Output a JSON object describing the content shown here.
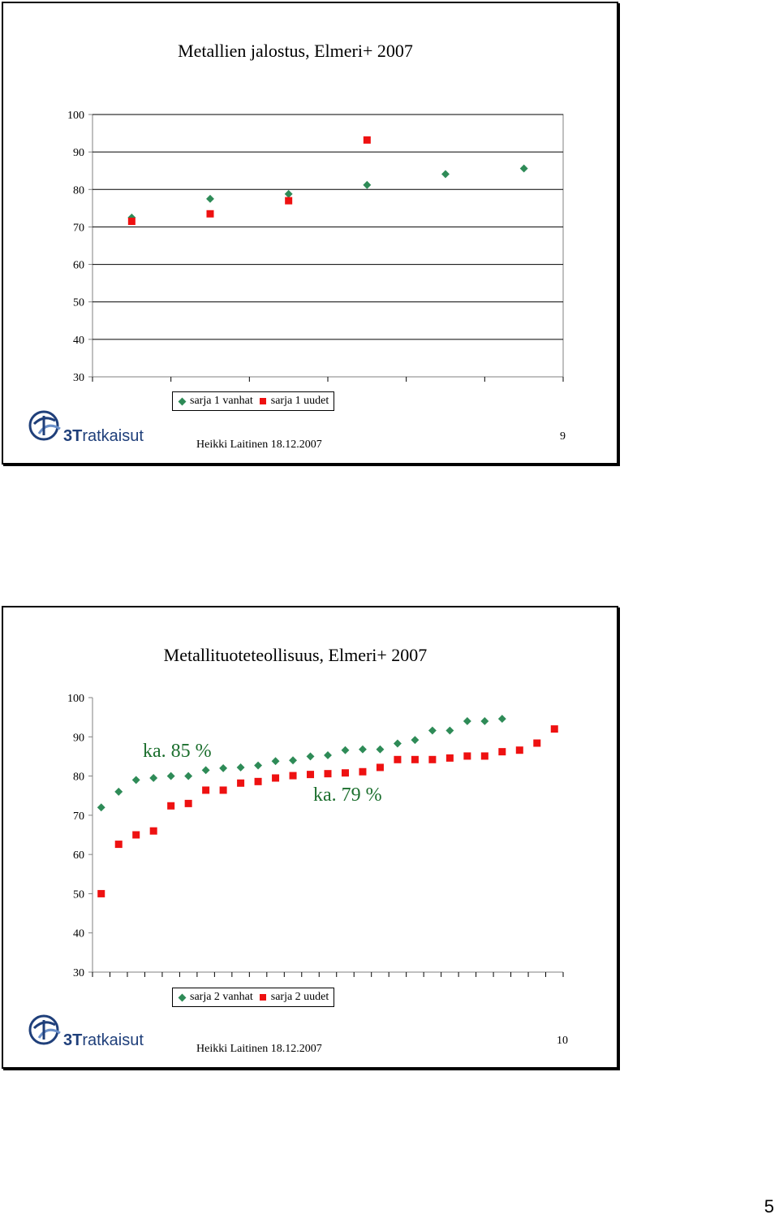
{
  "slides": [
    {
      "title": "Metallien jalostus, Elmeri+ 2007",
      "footer": "Heikki Laitinen 18.12.2007",
      "page": "9",
      "legend": {
        "series1": "sarja 1 vanhat",
        "series2": "sarja 1 uudet"
      },
      "logo": {
        "mark": "3T",
        "rest": "ratkaisut"
      }
    },
    {
      "title": "Metallituoteteollisuus, Elmeri+ 2007",
      "footer": "Heikki Laitinen 18.12.2007",
      "page": "10",
      "legend": {
        "series1": "sarja 2 vanhat",
        "series2": "sarja 2 uudet"
      },
      "annotations": {
        "a1": "ka. 85 %",
        "a2": "ka. 79 %"
      },
      "logo": {
        "mark": "3T",
        "rest": "ratkaisut"
      }
    }
  ],
  "sheet_page": "5",
  "colors": {
    "series_old": "#2e8b57",
    "series_new": "#ee1111"
  },
  "chart_data": [
    {
      "type": "scatter",
      "title": "Metallien jalostus, Elmeri+ 2007",
      "ylim": [
        30,
        100
      ],
      "yticks": [
        30,
        40,
        50,
        60,
        70,
        80,
        90,
        100
      ],
      "categories": [
        1,
        2,
        3,
        4,
        5,
        6
      ],
      "grid": true,
      "legend_position": "bottom",
      "series": [
        {
          "name": "sarja 1 vanhat",
          "marker": "diamond",
          "values": [
            72.5,
            77.5,
            78.8,
            81.2,
            84.1,
            85.6
          ]
        },
        {
          "name": "sarja 1 uudet",
          "marker": "square",
          "values": [
            71.5,
            73.5,
            77,
            93.2,
            null,
            null
          ]
        }
      ]
    },
    {
      "type": "scatter",
      "title": "Metallituoteteollisuus, Elmeri+ 2007",
      "ylim": [
        30,
        100
      ],
      "yticks": [
        30,
        40,
        50,
        60,
        70,
        80,
        90,
        100
      ],
      "categories": [
        1,
        2,
        3,
        4,
        5,
        6,
        7,
        8,
        9,
        10,
        11,
        12,
        13,
        14,
        15,
        16,
        17,
        18,
        19,
        20,
        21,
        22,
        23,
        24,
        25,
        26,
        27
      ],
      "grid": false,
      "legend_position": "bottom",
      "series": [
        {
          "name": "sarja 2 vanhat",
          "marker": "diamond",
          "values": [
            72,
            76,
            79,
            79.5,
            80,
            80,
            81.5,
            82,
            82.2,
            82.7,
            83.8,
            84,
            85,
            85.3,
            86.6,
            86.8,
            86.8,
            88.3,
            89.2,
            91.6,
            91.6,
            94,
            94,
            94.6,
            null,
            null,
            null
          ]
        },
        {
          "name": "sarja 2 uudet",
          "marker": "square",
          "values": [
            50,
            62.6,
            65,
            66,
            72.4,
            73,
            76.4,
            76.4,
            78.2,
            78.6,
            79.5,
            80.1,
            80.4,
            80.6,
            80.8,
            81.1,
            82.2,
            84.2,
            84.2,
            84.2,
            84.6,
            85.1,
            85.1,
            86.2,
            86.6,
            88.4,
            92
          ]
        }
      ],
      "annotations": [
        "ka. 85 %",
        "ka. 79 %"
      ]
    }
  ]
}
